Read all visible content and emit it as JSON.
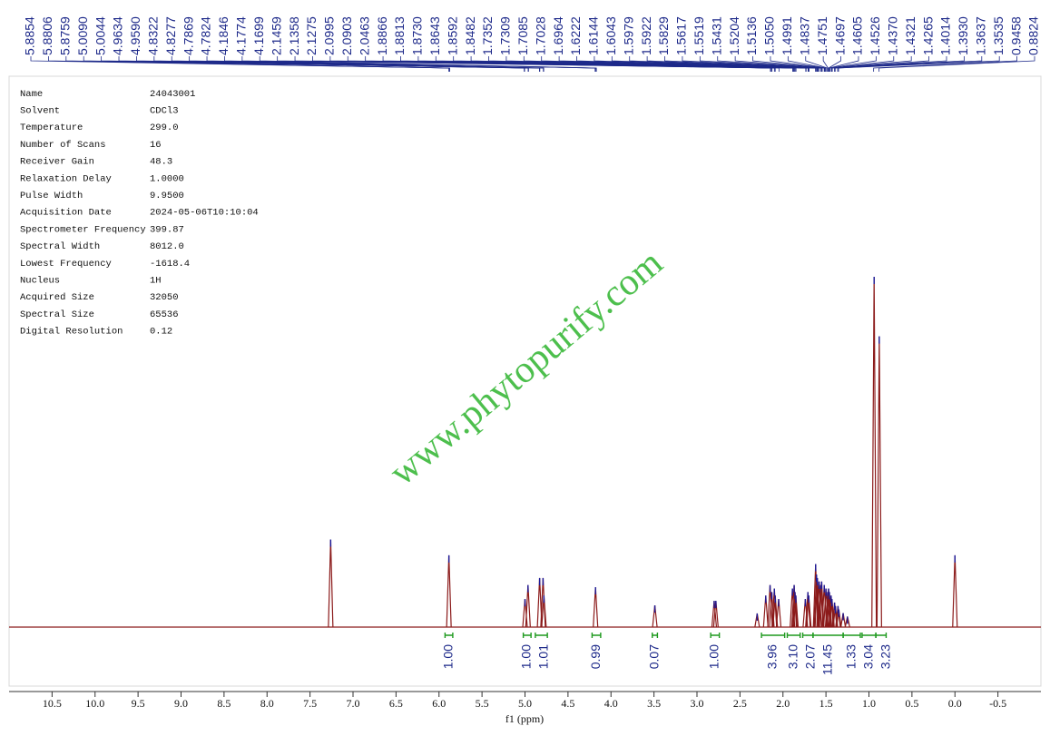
{
  "chart_data": {
    "type": "nmr",
    "x_label": "f1 (ppm)",
    "watermark": "www.phytopurify.com",
    "xlim": [
      11.0,
      -1.0
    ],
    "ylim": [
      0,
      100
    ],
    "xticks": [
      10.5,
      {
        "value": 10,
        "label": "10.0"
      },
      9.5,
      {
        "value": 9,
        "label": "9.0"
      },
      8.5,
      {
        "value": 8,
        "label": "8.0"
      },
      7.5,
      {
        "value": 7,
        "label": "7.0"
      },
      6.5,
      {
        "value": 6,
        "label": "6.0"
      },
      5.5,
      {
        "value": 5,
        "label": "5.0"
      },
      4.5,
      {
        "value": 4,
        "label": "4.0"
      },
      3.5,
      {
        "value": 3,
        "label": "3.0"
      },
      2.5,
      {
        "value": 2,
        "label": "2.0"
      },
      1.5,
      {
        "value": 1,
        "label": "1.0"
      },
      0.5,
      {
        "value": 0,
        "label": "0.0"
      },
      -0.5
    ],
    "parameters": [
      [
        "Name",
        "24043001"
      ],
      [
        "Solvent",
        "CDCl3"
      ],
      [
        "Temperature",
        "299.0"
      ],
      [
        "Number of Scans",
        "16"
      ],
      [
        "Receiver Gain",
        "48.3"
      ],
      [
        "Relaxation Delay",
        "1.0000"
      ],
      [
        "Pulse Width",
        "9.9500"
      ],
      [
        "Acquisition Date",
        "2024-05-06T10:10:04"
      ],
      [
        "Spectrometer Frequency",
        "399.87"
      ],
      [
        "Spectral Width",
        "8012.0"
      ],
      [
        "Lowest Frequency",
        "-1618.4"
      ],
      [
        "Nucleus",
        "1H"
      ],
      [
        "Acquired Size",
        "32050"
      ],
      [
        "Spectral Size",
        "65536"
      ],
      [
        "Digital Resolution",
        "0.12"
      ]
    ],
    "peak_labels": [
      5.8854,
      5.8806,
      5.8759,
      {
        "value": 5.009,
        "label": "5.0090"
      },
      5.0044,
      4.9634,
      {
        "value": 4.959,
        "label": "4.9590"
      },
      4.8322,
      4.8277,
      4.7869,
      4.7824,
      4.1846,
      4.1774,
      4.1699,
      2.1459,
      2.1358,
      2.1275,
      2.0995,
      2.0903,
      2.0463,
      1.8866,
      1.8813,
      {
        "value": 1.873,
        "label": "1.8730"
      },
      1.8643,
      1.8592,
      1.8482,
      1.7352,
      1.7309,
      1.7085,
      1.7028,
      1.6964,
      1.6222,
      1.6144,
      1.6043,
      1.5979,
      1.5922,
      1.5829,
      1.5617,
      1.5519,
      1.5431,
      1.5204,
      1.5136,
      {
        "value": 1.505,
        "label": "1.5050"
      },
      1.4991,
      1.4837,
      1.4751,
      1.4697,
      1.4605,
      1.4526,
      {
        "value": 1.437,
        "label": "1.4370"
      },
      1.4321,
      1.4265,
      1.4014,
      {
        "value": 1.393,
        "label": "1.3930"
      },
      1.3637,
      1.3535,
      0.9458,
      0.8824
    ],
    "series": [
      {
        "name": "spectrum",
        "color": "#8b1a1a",
        "x": [
          7.26,
          5.885,
          5.0,
          4.965,
          4.83,
          4.79,
          4.78,
          4.18,
          3.49,
          2.8,
          2.78,
          2.3,
          2.2,
          2.15,
          2.13,
          2.1,
          2.09,
          2.05,
          1.89,
          1.87,
          1.86,
          1.85,
          1.74,
          1.71,
          1.7,
          1.62,
          1.61,
          1.6,
          1.58,
          1.56,
          1.55,
          1.52,
          1.5,
          1.48,
          1.47,
          1.46,
          1.44,
          1.43,
          1.4,
          1.39,
          1.36,
          1.35,
          1.3,
          1.25,
          0.94,
          0.88,
          0.0
        ],
        "values": [
          25,
          20.5,
          8,
          12,
          14,
          14,
          9,
          11.4,
          6.2,
          7.5,
          7.5,
          3.9,
          9,
          12,
          10,
          11,
          9,
          8,
          11,
          12,
          10,
          9,
          8,
          10,
          9,
          18,
          15,
          14,
          13,
          12,
          13,
          12,
          11,
          10,
          11,
          10,
          9,
          8,
          7,
          6,
          6,
          5,
          4,
          3,
          100,
          83,
          20.5
        ]
      }
    ],
    "integrals": [
      {
        "from": 5.93,
        "to": 5.84,
        "label": "1.00"
      },
      {
        "from": 5.02,
        "to": 4.93,
        "label": "1.00"
      },
      {
        "from": 4.88,
        "to": 4.74,
        "label": "1.01"
      },
      {
        "from": 4.22,
        "to": 4.12,
        "label": "0.99"
      },
      {
        "from": 3.52,
        "to": 3.46,
        "label": "0.07"
      },
      {
        "from": 2.84,
        "to": 2.74,
        "label": "1.00"
      },
      {
        "from": 2.25,
        "to": 1.98,
        "label": "3.96"
      },
      {
        "from": 1.95,
        "to": 1.8,
        "label": "3.10"
      },
      {
        "from": 1.77,
        "to": 1.65,
        "label": "2.07"
      },
      {
        "from": 1.65,
        "to": 1.3,
        "label": "11.45"
      },
      {
        "from": 1.3,
        "to": 1.1,
        "label": "1.33"
      },
      {
        "from": 1.08,
        "to": 0.92,
        "label": "3.04"
      },
      {
        "from": 0.92,
        "to": 0.8,
        "label": "3.23"
      }
    ]
  }
}
